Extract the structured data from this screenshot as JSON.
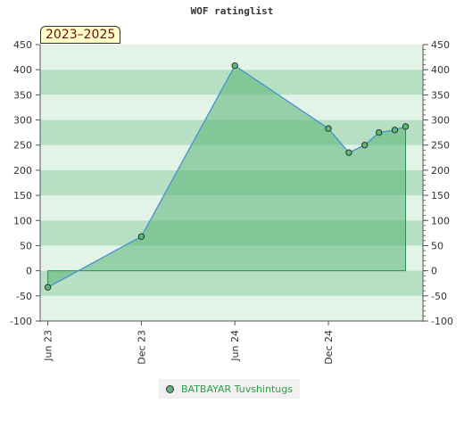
{
  "title": "WOF ratinglist",
  "range_label": "2023–2025",
  "colors": {
    "band_dark": "#b7dfc3",
    "band_light": "#e2f3e7",
    "area_fill": "#56b374",
    "line": "#4a90d9",
    "zero_line": "#2e8b57",
    "marker": "#5fb878",
    "legend_text": "#2e9e4a"
  },
  "chart_data": {
    "type": "area",
    "title": "WOF ratinglist",
    "xlabel": "",
    "ylabel": "",
    "ylim": [
      -100,
      450
    ],
    "yticks": [
      -100,
      -50,
      0,
      50,
      100,
      150,
      200,
      250,
      300,
      350,
      400,
      450
    ],
    "x_ticks": [
      "Jun 23",
      "Dec 23",
      "Jun 24",
      "Dec 24"
    ],
    "x_range": [
      "2023-05-17",
      "2025-06-04"
    ],
    "grid": true,
    "legend_position": "bottom",
    "series": [
      {
        "name": "BATBAYAR Tuvshintugs",
        "points": [
          {
            "x": "2023-06-01",
            "y": -33
          },
          {
            "x": "2023-12-01",
            "y": 68
          },
          {
            "x": "2024-06-01",
            "y": 408
          },
          {
            "x": "2024-12-01",
            "y": 283
          },
          {
            "x": "2025-01-10",
            "y": 235
          },
          {
            "x": "2025-02-10",
            "y": 250
          },
          {
            "x": "2025-03-10",
            "y": 275
          },
          {
            "x": "2025-04-10",
            "y": 280
          },
          {
            "x": "2025-05-01",
            "y": 287
          }
        ]
      }
    ]
  }
}
